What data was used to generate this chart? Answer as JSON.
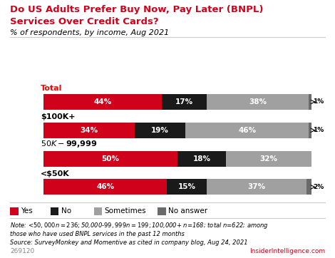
{
  "title_line1": "Do US Adults Prefer Buy Now, Pay Later (BNPL)",
  "title_line2": "Services Over Credit Cards?",
  "subtitle": "% of respondents, by income, Aug 2021",
  "categories": [
    "<$50K",
    "$50K-$99,999",
    "$100K+",
    "Total"
  ],
  "category_colors": [
    "black",
    "black",
    "black",
    "red"
  ],
  "data": {
    "<$50K": [
      46,
      15,
      37,
      2
    ],
    "$50K-$99,999": [
      50,
      18,
      32,
      0
    ],
    "$100K+": [
      34,
      19,
      46,
      1
    ],
    "Total": [
      44,
      17,
      38,
      1
    ]
  },
  "labels": {
    "<$50K": [
      "46%",
      "15%",
      "37%",
      "2%"
    ],
    "$50K-$99,999": [
      "50%",
      "18%",
      "32%",
      ""
    ],
    "$100K+": [
      "34%",
      "19%",
      "46%",
      "1%"
    ],
    "Total": [
      "44%",
      "17%",
      "38%",
      "1%"
    ]
  },
  "colors": [
    "#d0021b",
    "#1a1a1a",
    "#a0a0a0",
    "#6b6b6b"
  ],
  "legend_labels": [
    "Yes",
    "No",
    "Sometimes",
    "No answer"
  ],
  "note": "Note: <$50,000 n=236; $50,000-$99,999 n=199; $100,000+ n=168; total n=622; among\nthose who have used BNPL services in the past 12 months",
  "source": "Source: SurveyMonkey and Momentive as cited in company blog, Aug 24, 2021",
  "footnote_id": "269120",
  "brand": "InsiderIntelligence.com",
  "bar_height": 0.55,
  "background_color": "#ffffff"
}
